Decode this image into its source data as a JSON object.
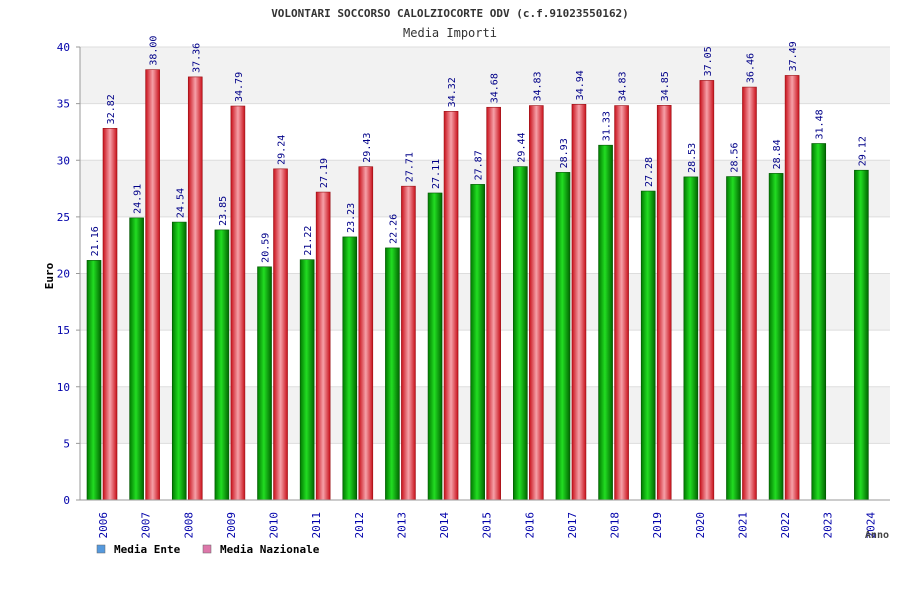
{
  "chart_data": {
    "type": "bar",
    "title": "VOLONTARI SOCCORSO CALOLZIOCORTE ODV (c.f.91023550162)",
    "subtitle": "Media Importi",
    "xlabel": "Anno",
    "ylabel": "Euro",
    "ylim": [
      0,
      40
    ],
    "yticks": [
      0,
      5,
      10,
      15,
      20,
      25,
      30,
      35,
      40
    ],
    "grid": true,
    "categories": [
      "2006",
      "2007",
      "2008",
      "2009",
      "2010",
      "2011",
      "2012",
      "2013",
      "2014",
      "2015",
      "2016",
      "2017",
      "2018",
      "2019",
      "2020",
      "2021",
      "2022",
      "2023",
      "2024"
    ],
    "series": [
      {
        "name": "Media Ente",
        "color": "#00aa00",
        "legend_color": "#5599dd",
        "values": [
          21.16,
          24.91,
          24.54,
          23.85,
          20.59,
          21.22,
          23.23,
          22.26,
          27.11,
          27.87,
          29.44,
          28.93,
          31.33,
          27.28,
          28.53,
          28.56,
          28.84,
          31.48,
          29.12
        ],
        "labels": [
          "21.16",
          "24.91",
          "24.54",
          "23.85",
          "20.59",
          "21.22",
          "23.23",
          "22.26",
          "27.11",
          "27.87",
          "29.44",
          "28.93",
          "31.33",
          "27.28",
          "28.53",
          "28.56",
          "28.84",
          "31.48",
          "29.12"
        ]
      },
      {
        "name": "Media Nazionale",
        "color": "#e8202a",
        "legend_color": "#dd77aa",
        "values": [
          32.82,
          38.0,
          37.36,
          34.79,
          29.24,
          27.19,
          29.43,
          27.71,
          34.32,
          34.68,
          34.83,
          34.94,
          34.83,
          34.85,
          37.05,
          36.46,
          37.49,
          null,
          null
        ],
        "labels": [
          "32.82",
          "38.00",
          "37.36",
          "34.79",
          "29.24",
          "27.19",
          "29.43",
          "27.71",
          "34.32",
          "34.68",
          "34.83",
          "34.94",
          "34.83",
          "34.85",
          "37.05",
          "36.46",
          "37.49",
          null,
          null
        ]
      }
    ],
    "legend": "bottom-left"
  }
}
